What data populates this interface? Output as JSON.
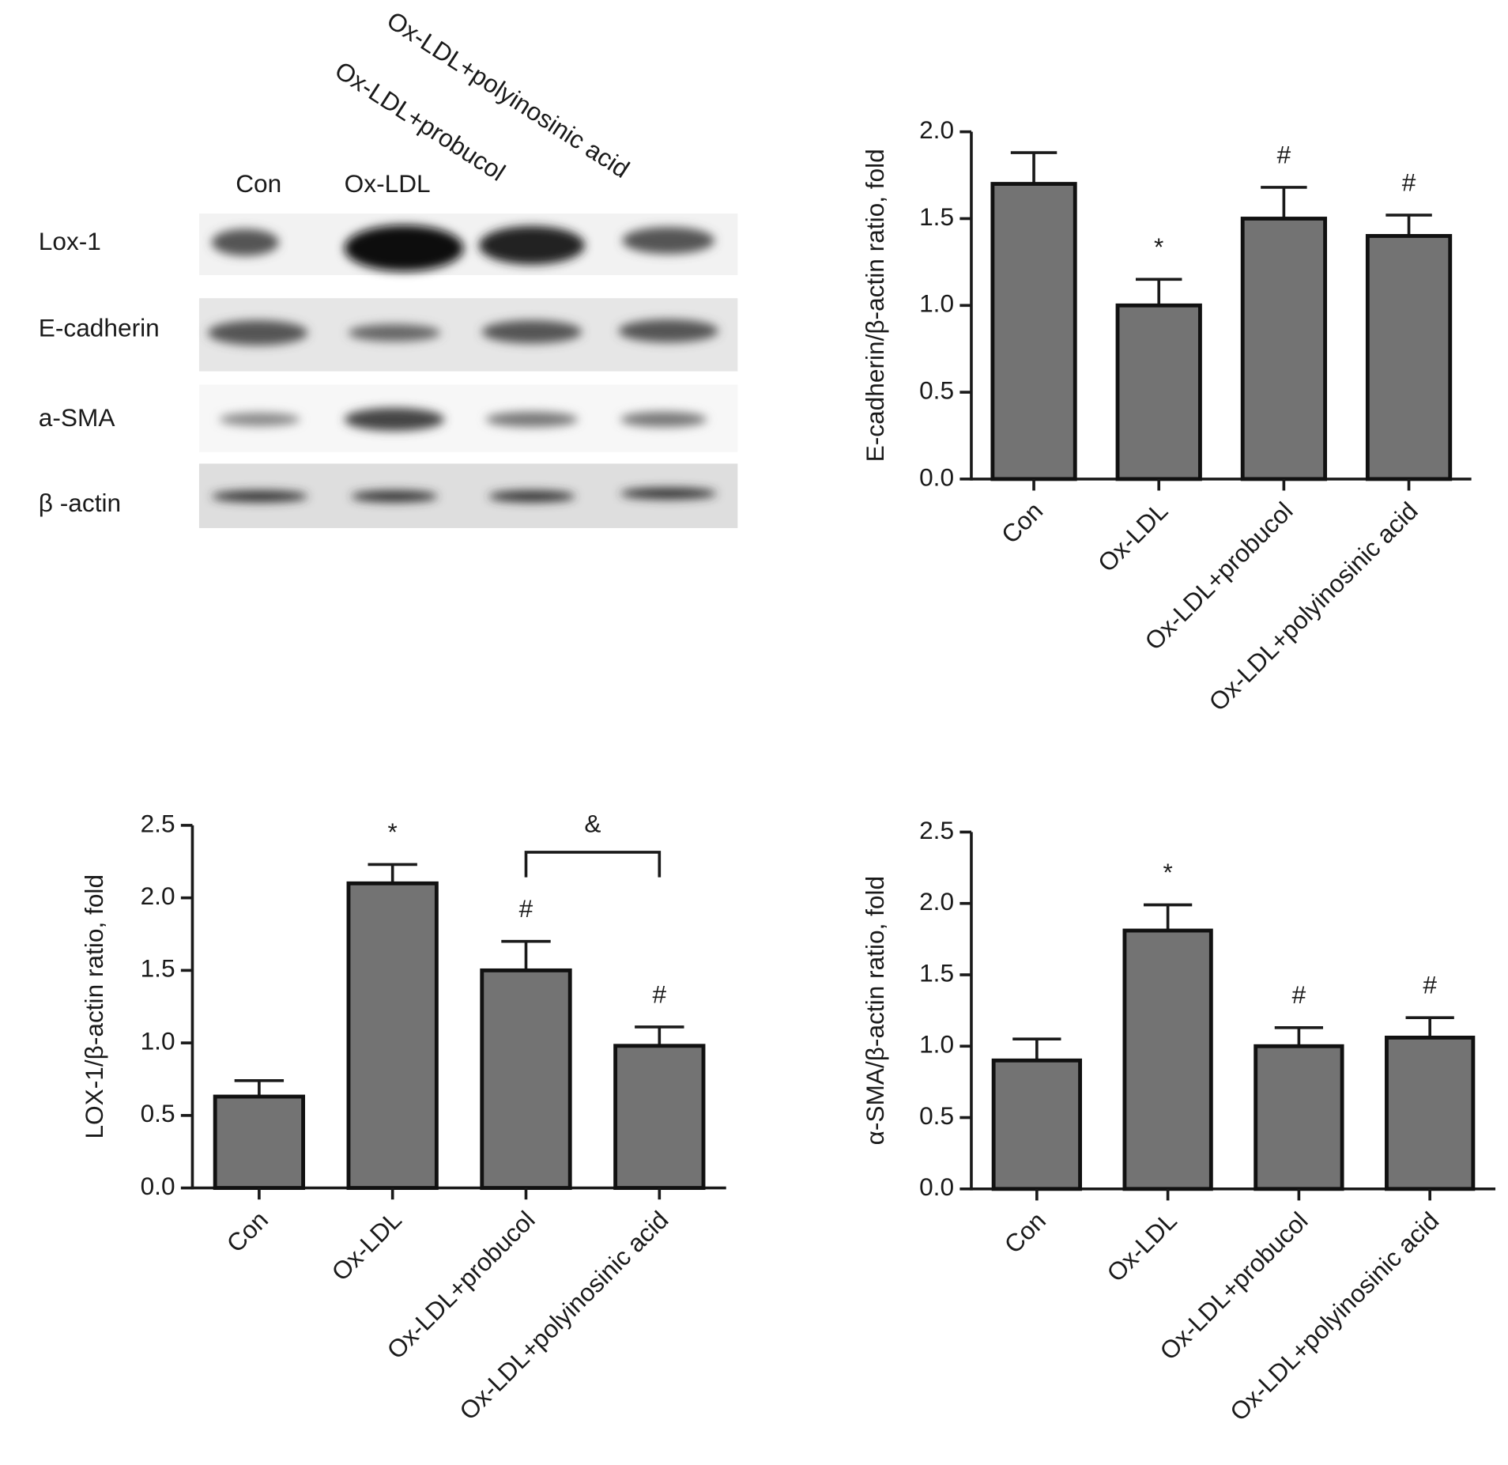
{
  "blot": {
    "lanes": [
      "Con",
      "Ox-LDL",
      "Ox-LDL+probucol",
      "Ox-LDL+polyinosinic acid"
    ],
    "rows": [
      "Lox-1",
      "E-cadherin",
      "a-SMA",
      "β -actin"
    ]
  },
  "chart_data": [
    {
      "type": "bar",
      "ylabel": "E-cadherin/β-actin ratio, fold",
      "categories": [
        "Con",
        "Ox-LDL",
        "Ox-LDL+probucol",
        "Ox-LDL+polyinosinic acid"
      ],
      "values": [
        1.7,
        1.0,
        1.5,
        1.4
      ],
      "errors": [
        0.18,
        0.15,
        0.18,
        0.12
      ],
      "annotations": [
        null,
        "*",
        "#",
        "#"
      ],
      "color": "#737373",
      "ylim": [
        0,
        2
      ],
      "yticks": [
        {
          "value": 0,
          "label": "0.0"
        },
        0.5,
        {
          "value": 1,
          "label": "1.0"
        },
        1.5,
        {
          "value": 2,
          "label": "2.0"
        }
      ]
    },
    {
      "type": "bar",
      "ylabel": "LOX-1/β-actin ratio, fold",
      "categories": [
        "Con",
        "Ox-LDL",
        "Ox-LDL+probucol",
        "Ox-LDL+polyinosinic acid"
      ],
      "values": [
        0.63,
        2.1,
        1.5,
        0.98
      ],
      "errors": [
        0.11,
        0.13,
        0.2,
        0.13
      ],
      "annotations": [
        null,
        "*",
        "#",
        "#"
      ],
      "color": "#737373",
      "bracket": {
        "label": "&",
        "categories": [
          "Ox-LDL+probucol",
          "Ox-LDL+polyinosinic acid"
        ]
      },
      "ylim": [
        0,
        2.5
      ],
      "yticks": [
        {
          "value": 0,
          "label": "0.0"
        },
        0.5,
        {
          "value": 1,
          "label": "1.0"
        },
        1.5,
        {
          "value": 2,
          "label": "2.0"
        },
        2.5
      ]
    },
    {
      "type": "bar",
      "ylabel": "α-SMA/β-actin ratio, fold",
      "categories": [
        "Con",
        "Ox-LDL",
        "Ox-LDL+probucol",
        "Ox-LDL+polyinosinic acid"
      ],
      "values": [
        0.9,
        1.81,
        1.0,
        1.06
      ],
      "errors": [
        0.15,
        0.18,
        0.13,
        0.14
      ],
      "annotations": [
        null,
        "*",
        "#",
        "#"
      ],
      "color": "#737373",
      "ylim": [
        0,
        2.5
      ],
      "yticks": [
        {
          "value": 0,
          "label": "0.0"
        },
        0.5,
        {
          "value": 1,
          "label": "1.0"
        },
        1.5,
        {
          "value": 2,
          "label": "2.0"
        },
        2.5
      ]
    }
  ]
}
